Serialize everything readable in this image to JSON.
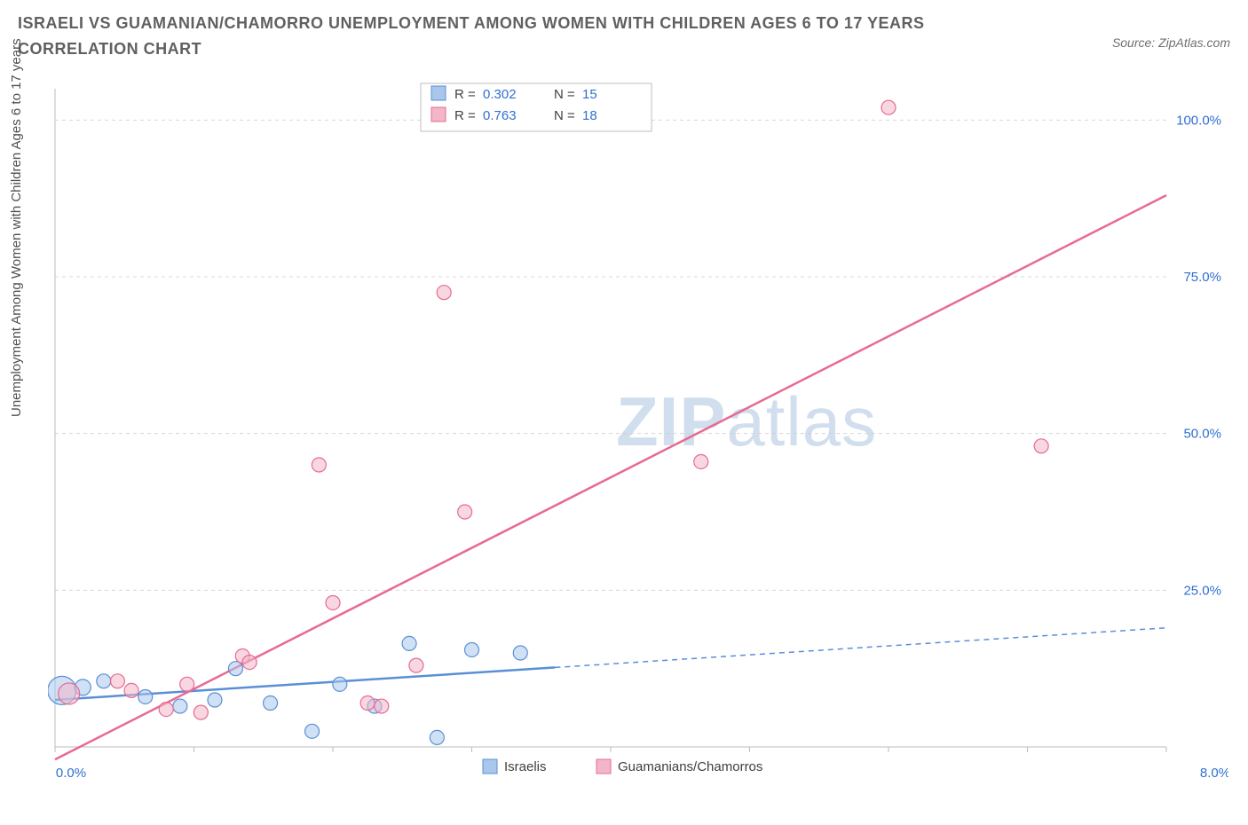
{
  "title": "ISRAELI VS GUAMANIAN/CHAMORRO UNEMPLOYMENT AMONG WOMEN WITH CHILDREN AGES 6 TO 17 YEARS CORRELATION CHART",
  "source": "Source: ZipAtlas.com",
  "yaxis_label": "Unemployment Among Women with Children Ages 6 to 17 years",
  "watermark_a": "ZIP",
  "watermark_b": "atlas",
  "chart": {
    "type": "scatter-correlation",
    "xlim": [
      0,
      8
    ],
    "ylim": [
      0,
      105
    ],
    "xticks": [
      0,
      1,
      2,
      3,
      4,
      5,
      6,
      7,
      8
    ],
    "xtick_labels_shown": {
      "0": "0.0%",
      "8": "8.0%"
    },
    "yticks": [
      25,
      50,
      75,
      100
    ],
    "ytick_labels": [
      "25.0%",
      "50.0%",
      "75.0%",
      "100.0%"
    ],
    "grid_color": "#d8d8d8",
    "axis_color": "#bdbdbd",
    "background_color": "#ffffff",
    "series": [
      {
        "name": "Israelis",
        "color_fill": "#a9c6ec",
        "color_stroke": "#5a8fd6",
        "fill_opacity": 0.55,
        "R": "0.302",
        "N": "15",
        "trend": {
          "x1": 0,
          "y1": 7.5,
          "x2": 8,
          "y2": 19,
          "solid_until_x": 3.6
        },
        "points": [
          {
            "x": 0.05,
            "y": 9,
            "r": 16
          },
          {
            "x": 0.2,
            "y": 9.5,
            "r": 9
          },
          {
            "x": 0.35,
            "y": 10.5,
            "r": 8
          },
          {
            "x": 0.65,
            "y": 8.0,
            "r": 8
          },
          {
            "x": 0.9,
            "y": 6.5,
            "r": 8
          },
          {
            "x": 1.15,
            "y": 7.5,
            "r": 8
          },
          {
            "x": 1.3,
            "y": 12.5,
            "r": 8
          },
          {
            "x": 1.55,
            "y": 7.0,
            "r": 8
          },
          {
            "x": 1.85,
            "y": 2.5,
            "r": 8
          },
          {
            "x": 2.05,
            "y": 10.0,
            "r": 8
          },
          {
            "x": 2.55,
            "y": 16.5,
            "r": 8
          },
          {
            "x": 2.75,
            "y": 1.5,
            "r": 8
          },
          {
            "x": 3.0,
            "y": 15.5,
            "r": 8
          },
          {
            "x": 3.35,
            "y": 15.0,
            "r": 8
          },
          {
            "x": 2.3,
            "y": 6.5,
            "r": 8
          }
        ]
      },
      {
        "name": "Guamanians/Chamorros",
        "color_fill": "#f3b6c9",
        "color_stroke": "#e86a92",
        "fill_opacity": 0.55,
        "R": "0.763",
        "N": "18",
        "trend": {
          "x1": 0,
          "y1": -2,
          "x2": 8,
          "y2": 88,
          "solid_until_x": 8
        },
        "points": [
          {
            "x": 0.1,
            "y": 8.5,
            "r": 12
          },
          {
            "x": 0.45,
            "y": 10.5,
            "r": 8
          },
          {
            "x": 0.55,
            "y": 9.0,
            "r": 8
          },
          {
            "x": 0.8,
            "y": 6.0,
            "r": 8
          },
          {
            "x": 0.95,
            "y": 10.0,
            "r": 8
          },
          {
            "x": 1.05,
            "y": 5.5,
            "r": 8
          },
          {
            "x": 1.35,
            "y": 14.5,
            "r": 8
          },
          {
            "x": 1.4,
            "y": 13.5,
            "r": 8
          },
          {
            "x": 1.9,
            "y": 45.0,
            "r": 8
          },
          {
            "x": 2.0,
            "y": 23.0,
            "r": 8
          },
          {
            "x": 2.25,
            "y": 7.0,
            "r": 8
          },
          {
            "x": 2.35,
            "y": 6.5,
            "r": 8
          },
          {
            "x": 2.6,
            "y": 13.0,
            "r": 8
          },
          {
            "x": 2.8,
            "y": 72.5,
            "r": 8
          },
          {
            "x": 2.95,
            "y": 37.5,
            "r": 8
          },
          {
            "x": 4.65,
            "y": 45.5,
            "r": 8
          },
          {
            "x": 6.0,
            "y": 102.0,
            "r": 8
          },
          {
            "x": 7.1,
            "y": 48.0,
            "r": 8
          }
        ]
      }
    ],
    "top_legend": {
      "rows": [
        {
          "swatch_fill": "#a9c6ec",
          "swatch_stroke": "#5a8fd6",
          "R_label": "R =",
          "R_val": "0.302",
          "N_label": "N =",
          "N_val": "15"
        },
        {
          "swatch_fill": "#f3b6c9",
          "swatch_stroke": "#e86a92",
          "R_label": "R =",
          "R_val": "0.763",
          "N_label": "N =",
          "N_val": "18"
        }
      ]
    },
    "bottom_legend": [
      {
        "swatch_fill": "#a9c6ec",
        "swatch_stroke": "#5a8fd6",
        "label": "Israelis"
      },
      {
        "swatch_fill": "#f3b6c9",
        "swatch_stroke": "#e86a92",
        "label": "Guamanians/Chamorros"
      }
    ]
  }
}
